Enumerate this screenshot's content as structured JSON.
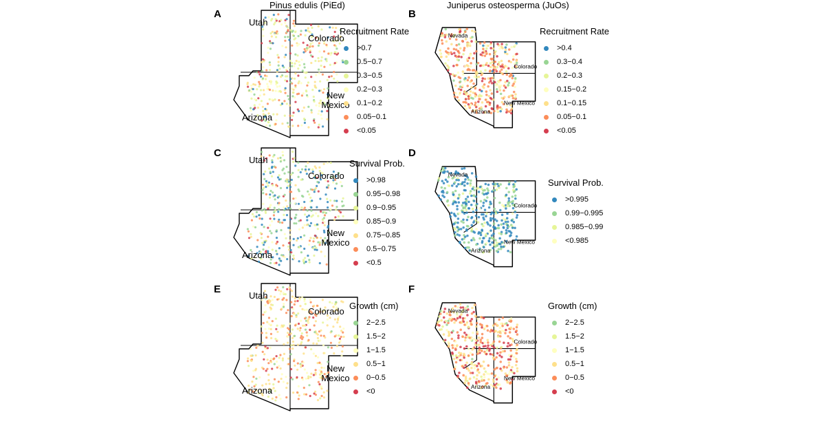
{
  "columns": [
    {
      "title": "Pinus edulis (PiEd)"
    },
    {
      "title": "Juniperus osteosperma (JuOs)"
    }
  ],
  "panels": [
    {
      "letter": "A",
      "species": "PiEd",
      "legend_title": "Recruitment Rate",
      "labels": {
        "utah": "Utah",
        "colorado": "Colorado",
        "arizona": "Arizona",
        "newmexico_1": "New",
        "newmexico_2": "Mexico"
      },
      "legend": [
        {
          "label": ">0.7",
          "color": "#3288bd"
        },
        {
          "label": "0.5−0.7",
          "color": "#99d594"
        },
        {
          "label": "0.3−0.5",
          "color": "#e6f598"
        },
        {
          "label": "0.2−0.3",
          "color": "#ffffbf"
        },
        {
          "label": "0.1−0.2",
          "color": "#fee08b"
        },
        {
          "label": "0.05−0.1",
          "color": "#fc8d59"
        },
        {
          "label": "<0.05",
          "color": "#d53e4f"
        }
      ]
    },
    {
      "letter": "B",
      "species": "JuOs",
      "legend_title": "Recruitment Rate",
      "labels": {
        "nevada": "Nevada",
        "colorado": "Colorado",
        "arizona": "Arizona",
        "newmexico": "New Mexico"
      },
      "legend": [
        {
          "label": ">0.4",
          "color": "#3288bd"
        },
        {
          "label": "0.3−0.4",
          "color": "#99d594"
        },
        {
          "label": "0.2−0.3",
          "color": "#e6f598"
        },
        {
          "label": "0.15−0.2",
          "color": "#ffffbf"
        },
        {
          "label": "0.1−0.15",
          "color": "#fee08b"
        },
        {
          "label": "0.05−0.1",
          "color": "#fc8d59"
        },
        {
          "label": "<0.05",
          "color": "#d53e4f"
        }
      ]
    },
    {
      "letter": "C",
      "species": "PiEd",
      "legend_title": "Survival Prob.",
      "labels": {
        "utah": "Utah",
        "colorado": "Colorado",
        "arizona": "Arizona",
        "newmexico_1": "New",
        "newmexico_2": "Mexico"
      },
      "legend": [
        {
          "label": ">0.98",
          "color": "#3288bd"
        },
        {
          "label": "0.95−0.98",
          "color": "#99d594"
        },
        {
          "label": "0.9−0.95",
          "color": "#e6f598"
        },
        {
          "label": "0.85−0.9",
          "color": "#ffffbf"
        },
        {
          "label": "0.75−0.85",
          "color": "#fee08b"
        },
        {
          "label": "0.5−0.75",
          "color": "#fc8d59"
        },
        {
          "label": "<0.5",
          "color": "#d53e4f"
        }
      ]
    },
    {
      "letter": "D",
      "species": "JuOs",
      "legend_title": "Survival Prob.",
      "labels": {
        "nevada": "Nevada",
        "colorado": "Colorado",
        "arizona": "Arizona",
        "newmexico": "New Mexico"
      },
      "legend": [
        {
          "label": ">0.995",
          "color": "#3288bd"
        },
        {
          "label": "0.99−0.995",
          "color": "#99d594"
        },
        {
          "label": "0.985−0.99",
          "color": "#e6f598"
        },
        {
          "label": "<0.985",
          "color": "#ffffbf"
        }
      ]
    },
    {
      "letter": "E",
      "species": "PiEd",
      "legend_title": "Growth (cm)",
      "labels": {
        "utah": "Utah",
        "colorado": "Colorado",
        "arizona": "Arizona",
        "newmexico_1": "New",
        "newmexico_2": "Mexico"
      },
      "legend": [
        {
          "label": "2−2.5",
          "color": "#99d594"
        },
        {
          "label": "1.5−2",
          "color": "#e6f598"
        },
        {
          "label": "1−1.5",
          "color": "#ffffbf"
        },
        {
          "label": "0.5−1",
          "color": "#fee08b"
        },
        {
          "label": "0−0.5",
          "color": "#fc8d59"
        },
        {
          "label": "<0",
          "color": "#d53e4f"
        }
      ]
    },
    {
      "letter": "F",
      "species": "JuOs",
      "legend_title": "Growth (cm)",
      "labels": {
        "nevada": "Nevada",
        "colorado": "Colorado",
        "arizona": "Arizona",
        "newmexico": "New Mexico"
      },
      "legend": [
        {
          "label": "2−2.5",
          "color": "#99d594"
        },
        {
          "label": "1.5−2",
          "color": "#e6f598"
        },
        {
          "label": "1−1.5",
          "color": "#ffffbf"
        },
        {
          "label": "0.5−1",
          "color": "#fee08b"
        },
        {
          "label": "0−0.5",
          "color": "#fc8d59"
        },
        {
          "label": "<0",
          "color": "#d53e4f"
        }
      ]
    }
  ]
}
